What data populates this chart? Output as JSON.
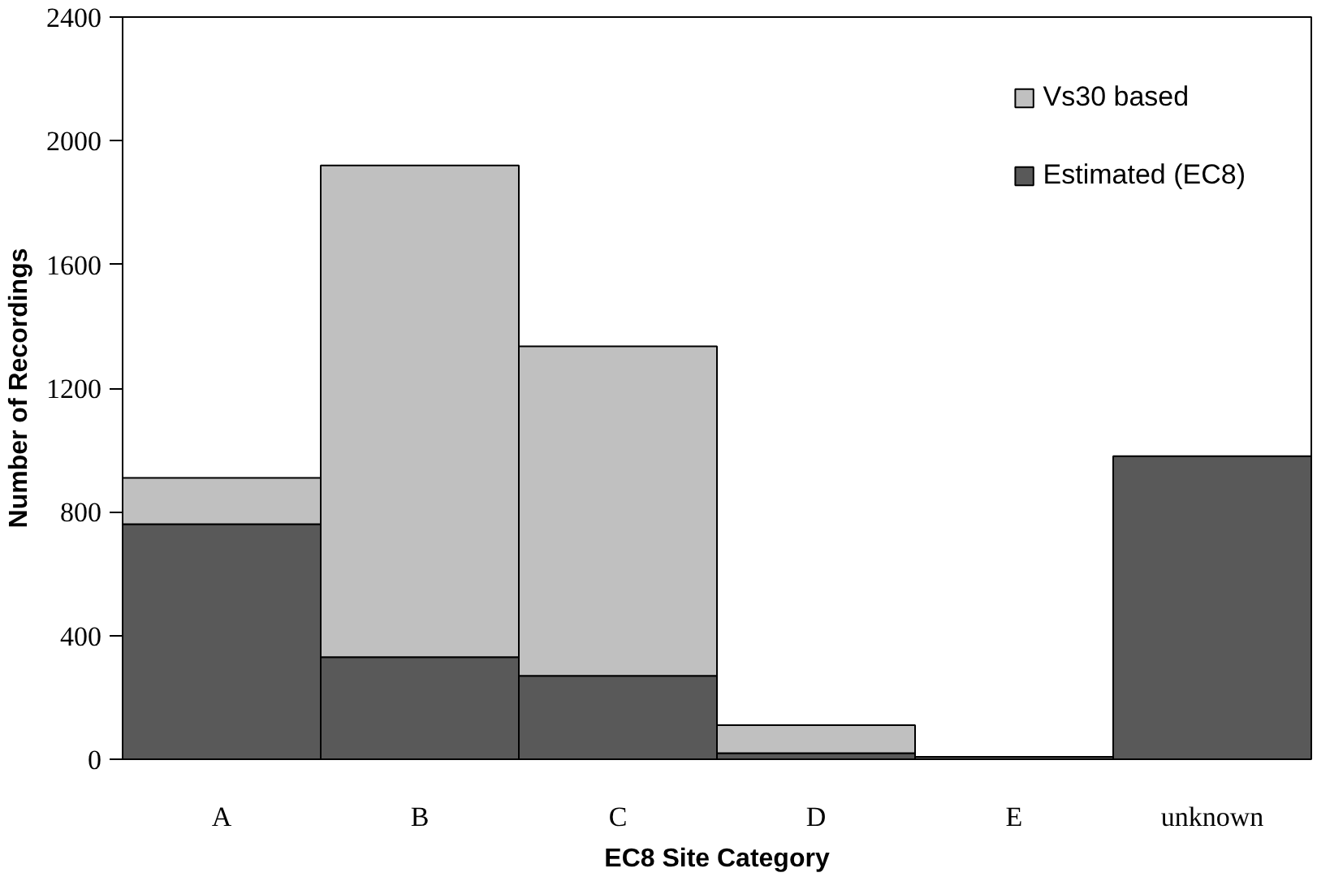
{
  "chart_data": {
    "type": "bar",
    "stacked": true,
    "xlabel": "EC8 Site Category",
    "ylabel": "Number of Recordings",
    "categories": [
      "A",
      "B",
      "C",
      "D",
      "E",
      "unknown"
    ],
    "series": [
      {
        "name": "Estimated (EC8)",
        "color": "#595959",
        "values": [
          760,
          330,
          270,
          20,
          8,
          980
        ]
      },
      {
        "name": "Vs30 based",
        "color": "#c0c0c0",
        "values": [
          150,
          1590,
          1065,
          90,
          null,
          null
        ]
      }
    ],
    "ylim": [
      0,
      2400
    ],
    "yticks": [
      0,
      400,
      800,
      1200,
      1600,
      2000,
      2400
    ],
    "grid": false,
    "legend": "top right"
  }
}
